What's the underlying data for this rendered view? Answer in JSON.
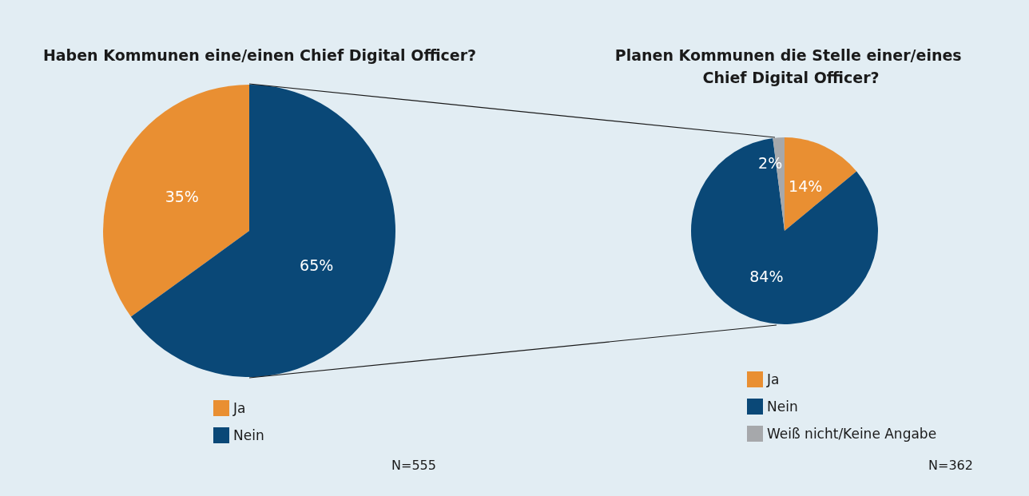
{
  "chart_data": [
    {
      "type": "pie",
      "title": "Haben Kommunen eine/einen Chief Digital Officer?",
      "categories": [
        "Ja",
        "Nein"
      ],
      "values": [
        35,
        65
      ],
      "colors": [
        "#e98f32",
        "#0a4877"
      ],
      "value_labels": [
        "35%",
        "65%"
      ],
      "legend": "bottom",
      "annotations": [
        "N=555"
      ]
    },
    {
      "type": "pie",
      "title": "Planen Kommunen die Stelle einer/eines Chief Digital Officer?",
      "categories": [
        "Ja",
        "Nein",
        "Weiß nicht/Keine Angabe"
      ],
      "values": [
        14,
        84,
        2
      ],
      "colors": [
        "#e98f32",
        "#0a4877",
        "#a6a8ab"
      ],
      "value_labels": [
        "14%",
        "84%",
        "2%"
      ],
      "legend": "bottom",
      "annotations": [
        "N=362"
      ]
    }
  ]
}
